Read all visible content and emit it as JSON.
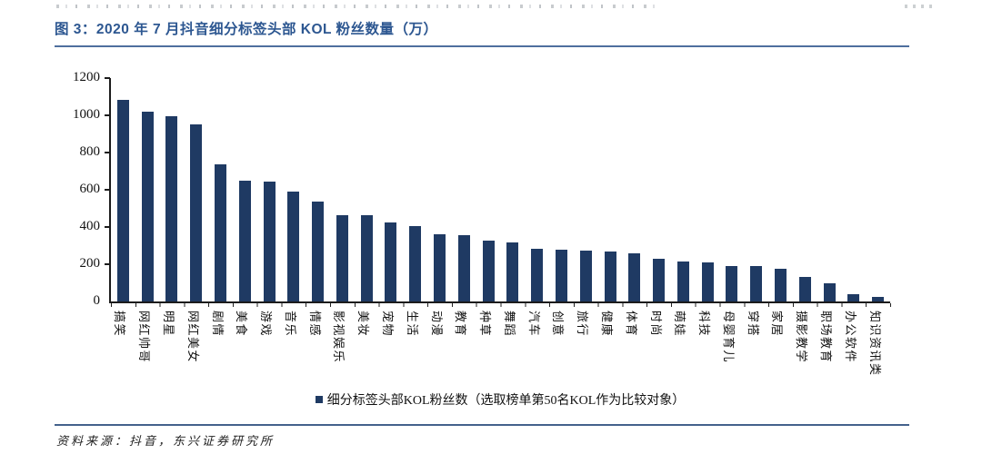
{
  "figure": {
    "title": "图 3：2020 年 7 月抖音细分标签头部 KOL 粉丝数量（万）",
    "source": "资料来源：抖音，东兴证券研究所"
  },
  "legend": {
    "label": "细分标签头部KOL粉丝数（选取榜单第50名KOL作为比较对象）"
  },
  "colors": {
    "bar": "#1f3a63",
    "title": "#2d5791",
    "rule": "#4e6f9e",
    "axis": "#1c1c1c"
  },
  "chart_data": {
    "type": "bar",
    "title": "2020 年 7 月抖音细分标签头部 KOL 粉丝数量（万）",
    "xlabel": "",
    "ylabel": "",
    "ylim": [
      0,
      1200
    ],
    "yticks": [
      0,
      200,
      400,
      600,
      800,
      1000,
      1200
    ],
    "grid": false,
    "legend_position": "bottom",
    "legend_entries": [
      "细分标签头部KOL粉丝数（选取榜单第50名KOL作为比较对象）"
    ],
    "categories": [
      "搞笑",
      "网红帅哥",
      "明星",
      "网红美女",
      "剧情",
      "美食",
      "游戏",
      "音乐",
      "情感",
      "影视娱乐",
      "美妆",
      "宠物",
      "生活",
      "动漫",
      "教育",
      "种草",
      "舞蹈",
      "汽车",
      "创意",
      "旅行",
      "健康",
      "体育",
      "时尚",
      "萌娃",
      "科技",
      "母婴育儿",
      "穿搭",
      "家居",
      "摄影教学",
      "职场教育",
      "办公软件",
      "知识资讯类"
    ],
    "values": [
      1085,
      1020,
      995,
      950,
      735,
      650,
      645,
      590,
      535,
      465,
      465,
      425,
      405,
      360,
      355,
      325,
      315,
      285,
      280,
      275,
      270,
      260,
      230,
      215,
      210,
      190,
      190,
      175,
      130,
      100,
      40,
      25
    ]
  }
}
